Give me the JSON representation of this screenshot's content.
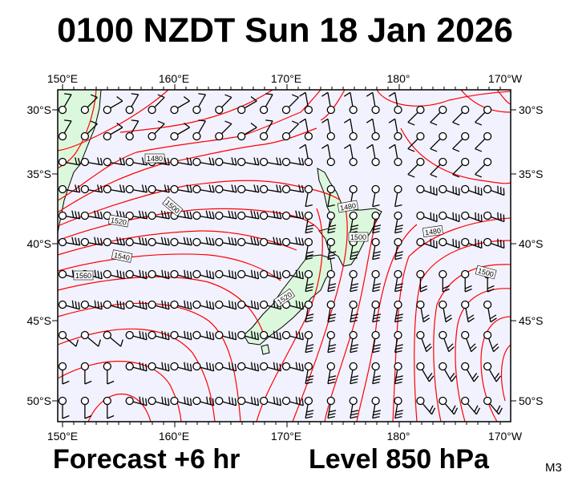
{
  "title": "0100 NZDT Sun 18 Jan 2026",
  "footer": {
    "forecast": "Forecast +6 hr",
    "level": "Level 850 hPa",
    "model_code": "M3"
  },
  "map": {
    "longitude_labels": [
      "150°E",
      "160°E",
      "170°E",
      "180°",
      "170°W"
    ],
    "latitude_labels": [
      "30°S",
      "35°S",
      "40°S",
      "45°S",
      "50°S"
    ],
    "contour_labels": [
      "1480",
      "1500",
      "1520",
      "1540",
      "1560",
      "1480",
      "1500",
      "1480",
      "1500",
      "1520"
    ],
    "colors": {
      "ocean": "#f2f2fe",
      "land": "#dcf8dc",
      "contour": "#ff0000",
      "barb": "#000000"
    },
    "layers": [
      "geopotential-height-contours",
      "wind-barbs",
      "coastlines"
    ]
  }
}
